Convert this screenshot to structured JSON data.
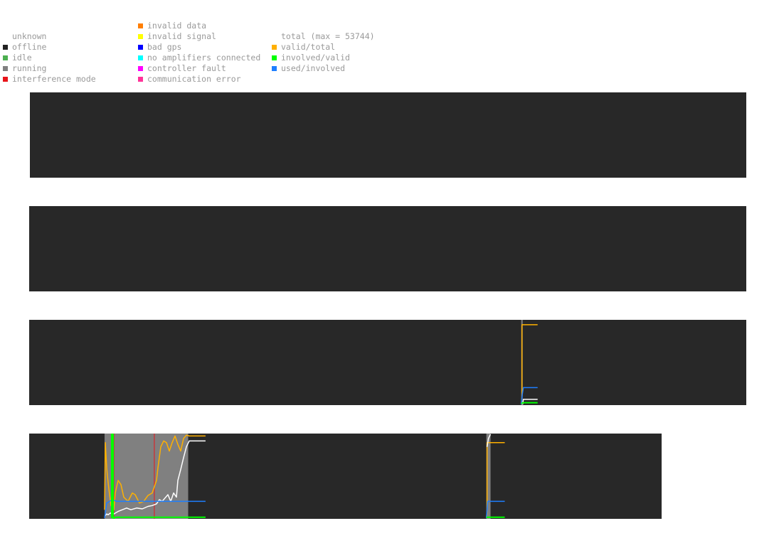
{
  "legend": {
    "status": [
      {
        "label": "unknown",
        "color": ""
      },
      {
        "label": "offline",
        "color": "#222222"
      },
      {
        "label": "idle",
        "color": "#4caf50"
      },
      {
        "label": "running",
        "color": "#808080"
      },
      {
        "label": "interference mode",
        "color": "#e8141a"
      }
    ],
    "errors": [
      {
        "label": "invalid data",
        "color": "#ff7f00"
      },
      {
        "label": "invalid signal",
        "color": "#ffff00"
      },
      {
        "label": "bad gps",
        "color": "#0000ff"
      },
      {
        "label": "no amplifiers connected",
        "color": "#00ffff"
      },
      {
        "label": "controller fault",
        "color": "#ff00ff"
      },
      {
        "label": "communication error",
        "color": "#ff3399"
      }
    ],
    "ratios": [
      {
        "label": "total (max = 53744)",
        "color": ""
      },
      {
        "label": "valid/total",
        "color": "#ffb000"
      },
      {
        "label": "involved/valid",
        "color": "#00ff00"
      },
      {
        "label": "used/involved",
        "color": "#1e7fff"
      }
    ]
  },
  "colors": {
    "panel_bg": "#282828",
    "running": "#808080",
    "interference": "#e8141a",
    "total": "#ffffff",
    "valid_total": "#ffb000",
    "involved_valid": "#00ff00",
    "used_involved": "#1e7fff"
  },
  "chart_data": [
    {
      "type": "line",
      "panel": 1,
      "x_range": [
        0,
        1
      ],
      "y_range": [
        0,
        1
      ],
      "status_segments": [],
      "interference_marks": [],
      "series": []
    },
    {
      "type": "line",
      "panel": 2,
      "x_range": [
        0,
        1
      ],
      "y_range": [
        0,
        1
      ],
      "status_segments": [],
      "interference_marks": [],
      "series": []
    },
    {
      "type": "line",
      "panel": 3,
      "x_range": [
        0,
        1
      ],
      "y_range": [
        0,
        1
      ],
      "status_segments": [
        {
          "status": "running",
          "start": 0.6862,
          "end": 0.6882
        }
      ],
      "interference_marks": [],
      "series": [
        {
          "key": "valid_total",
          "x": [
            0.6862,
            0.6872,
            0.6872,
            0.709
          ],
          "y": [
            0.0,
            0.08,
            0.95,
            0.95
          ]
        },
        {
          "key": "used_involved",
          "x": [
            0.6862,
            0.6877,
            0.6892,
            0.709
          ],
          "y": [
            0.0,
            0.12,
            0.2,
            0.2
          ]
        },
        {
          "key": "total",
          "x": [
            0.6882,
            0.6892,
            0.709
          ],
          "y": [
            0.0,
            0.06,
            0.06
          ]
        },
        {
          "key": "involved_valid",
          "x": [
            0.6862,
            0.6892,
            0.709
          ],
          "y": [
            0.01,
            0.02,
            0.02
          ]
        }
      ]
    },
    {
      "type": "line",
      "panel": 4,
      "x_range": [
        0,
        1
      ],
      "y_range": [
        0,
        1
      ],
      "status_segments": [
        {
          "status": "running",
          "start": 0.1192,
          "end": 0.2514
        },
        {
          "status": "running",
          "start": 0.7229,
          "end": 0.7295
        }
      ],
      "interference_marks": [
        0.1339,
        0.1979
      ],
      "series": [
        {
          "key": "valid_total",
          "x": [
            0.1192,
            0.1204,
            0.1215,
            0.1226,
            0.1237,
            0.126,
            0.1294,
            0.1339,
            0.1361,
            0.1406,
            0.1451,
            0.1496,
            0.1564,
            0.1631,
            0.1676,
            0.1744,
            0.1811,
            0.1879,
            0.1946,
            0.2013,
            0.2036,
            0.2081,
            0.2126,
            0.2171,
            0.2216,
            0.2261,
            0.2306,
            0.2351,
            0.2396,
            0.2441,
            0.2486,
            0.2531,
            0.2789
          ],
          "y": [
            0.1,
            0.9,
            0.75,
            0.6,
            0.5,
            0.35,
            0.15,
            0.1,
            0.3,
            0.45,
            0.4,
            0.25,
            0.2,
            0.3,
            0.28,
            0.18,
            0.2,
            0.27,
            0.3,
            0.45,
            0.6,
            0.85,
            0.92,
            0.9,
            0.8,
            0.9,
            0.98,
            0.88,
            0.8,
            0.95,
            0.99,
            0.98,
            0.98
          ]
        },
        {
          "key": "total",
          "x": [
            0.1192,
            0.1226,
            0.1249,
            0.1282,
            0.1339,
            0.1406,
            0.1474,
            0.1541,
            0.1609,
            0.1699,
            0.1789,
            0.1879,
            0.1946,
            0.2013,
            0.2058,
            0.2103,
            0.2148,
            0.2193,
            0.2238,
            0.2283,
            0.2328,
            0.2351,
            0.2396,
            0.2441,
            0.2486,
            0.2531,
            0.2789
          ],
          "y": [
            0.02,
            0.05,
            0.04,
            0.06,
            0.05,
            0.08,
            0.1,
            0.12,
            0.1,
            0.12,
            0.11,
            0.14,
            0.15,
            0.17,
            0.22,
            0.2,
            0.24,
            0.28,
            0.2,
            0.3,
            0.25,
            0.45,
            0.58,
            0.72,
            0.85,
            0.92,
            0.92
          ]
        },
        {
          "key": "used_involved",
          "x": [
            0.1192,
            0.1226,
            0.1271,
            0.1316,
            0.1384,
            0.2789
          ],
          "y": [
            0.0,
            0.18,
            0.2,
            0.22,
            0.2,
            0.2
          ]
        },
        {
          "key": "involved_valid",
          "x": [
            0.1305,
            0.1305,
            0.1327,
            0.1327,
            0.135,
            0.135,
            0.2789
          ],
          "y": [
            0.0,
            1.0,
            1.0,
            0.0,
            0.0,
            0.01,
            0.01
          ]
        },
        {
          "key": "valid_total",
          "x": [
            0.7229,
            0.724,
            0.724,
            0.752
          ],
          "y": [
            0.0,
            0.05,
            0.9,
            0.9
          ]
        },
        {
          "key": "total",
          "x": [
            0.724,
            0.7262,
            0.7295
          ],
          "y": [
            0.85,
            0.95,
            1.0
          ]
        },
        {
          "key": "used_involved",
          "x": [
            0.7229,
            0.7251,
            0.752
          ],
          "y": [
            0.0,
            0.2,
            0.2
          ]
        },
        {
          "key": "involved_valid",
          "x": [
            0.7229,
            0.752
          ],
          "y": [
            0.01,
            0.01
          ]
        }
      ]
    }
  ]
}
